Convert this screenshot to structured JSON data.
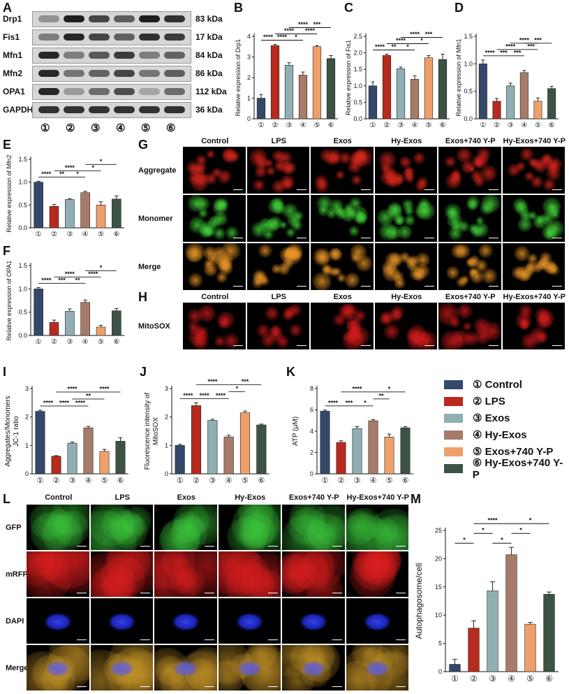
{
  "panels": {
    "A": "A",
    "B": "B",
    "C": "C",
    "D": "D",
    "E": "E",
    "F": "F",
    "G": "G",
    "H": "H",
    "I": "I",
    "J": "J",
    "K": "K",
    "L": "L",
    "M": "M"
  },
  "groups": [
    "①",
    "②",
    "③",
    "④",
    "⑤",
    "⑥"
  ],
  "colors": [
    "#34486a",
    "#b82a1e",
    "#8fafb3",
    "#a67b69",
    "#eea06a",
    "#3c5244"
  ],
  "legend": [
    "① Control",
    "② LPS",
    "③ Exos",
    "④ Hy-Exos",
    "⑤ Exos+740 Y-P",
    "⑥ Hy-Exos+740 Y-P"
  ],
  "western_blot": {
    "proteins": [
      {
        "name": "Drp1",
        "kda": "83 kDa"
      },
      {
        "name": "Fis1",
        "kda": "17 kDa"
      },
      {
        "name": "Mfn1",
        "kda": "84 kDa"
      },
      {
        "name": "Mfn2",
        "kda": "86 kDa"
      },
      {
        "name": "OPA1",
        "kda": "112 kDa"
      },
      {
        "name": "GAPDH",
        "kda": "36 kDa"
      }
    ],
    "intensity": [
      [
        0.35,
        0.95,
        0.75,
        0.62,
        0.95,
        0.85
      ],
      [
        0.45,
        0.9,
        0.75,
        0.6,
        0.85,
        0.8
      ],
      [
        0.9,
        0.45,
        0.65,
        0.8,
        0.45,
        0.6
      ],
      [
        0.9,
        0.5,
        0.6,
        0.75,
        0.5,
        0.62
      ],
      [
        0.9,
        0.3,
        0.55,
        0.7,
        0.25,
        0.55
      ],
      [
        0.85,
        0.85,
        0.85,
        0.85,
        0.85,
        0.85
      ]
    ]
  },
  "conditions": [
    "Control",
    "LPS",
    "Exos",
    "Hy-Exos",
    "Exos+740 Y-P",
    "Hy-Exos+740 Y-P"
  ],
  "row_labels_G": [
    "Aggregate",
    "Monomer",
    "Merge"
  ],
  "row_labels_H": [
    "MitoSOX"
  ],
  "row_labels_L": [
    "GFP",
    "mRFP",
    "DAPI",
    "Merge"
  ],
  "chart_data": [
    {
      "id": "B",
      "type": "bar",
      "categories": [
        "①",
        "②",
        "③",
        "④",
        "⑤",
        "⑥"
      ],
      "values": [
        1.0,
        3.55,
        2.6,
        2.12,
        3.5,
        2.92
      ],
      "errors": [
        0.18,
        0.06,
        0.12,
        0.15,
        0.05,
        0.15
      ],
      "ylabel": "Relative expression of Drp1",
      "ylim": [
        0,
        4
      ],
      "yticks": [
        0,
        1,
        2,
        3,
        4
      ],
      "sig": [
        {
          "from": 0,
          "to": 1,
          "label": "****",
          "level": 0
        },
        {
          "from": 1,
          "to": 2,
          "label": "****",
          "level": 0
        },
        {
          "from": 2,
          "to": 3,
          "label": "*",
          "level": 0
        },
        {
          "from": 1,
          "to": 3,
          "label": "****",
          "level": 1
        },
        {
          "from": 3,
          "to": 4,
          "label": "****",
          "level": 1
        },
        {
          "from": 2,
          "to": 4,
          "label": "****",
          "level": 2
        },
        {
          "from": 3,
          "to": 5,
          "label": "***",
          "level": 2
        }
      ]
    },
    {
      "id": "C",
      "type": "bar",
      "categories": [
        "①",
        "②",
        "③",
        "④",
        "⑤",
        "⑥"
      ],
      "values": [
        1.0,
        1.92,
        1.52,
        1.2,
        1.85,
        1.8
      ],
      "errors": [
        0.12,
        0.04,
        0.05,
        0.1,
        0.07,
        0.16
      ],
      "ylabel": "Relative expression of Fis1",
      "ylim": [
        0,
        2.5
      ],
      "yticks": [
        0,
        0.5,
        1.0,
        1.5,
        2.0,
        2.5
      ],
      "sig": [
        {
          "from": 0,
          "to": 1,
          "label": "****",
          "level": 0
        },
        {
          "from": 1,
          "to": 2,
          "label": "**",
          "level": 0
        },
        {
          "from": 2,
          "to": 3,
          "label": "*",
          "level": 0
        },
        {
          "from": 1,
          "to": 3,
          "label": "****",
          "level": 1
        },
        {
          "from": 3,
          "to": 4,
          "label": "*",
          "level": 1
        },
        {
          "from": 2,
          "to": 4,
          "label": "****",
          "level": 2
        },
        {
          "from": 3,
          "to": 5,
          "label": "***",
          "level": 2
        }
      ]
    },
    {
      "id": "D",
      "type": "bar",
      "categories": [
        "①",
        "②",
        "③",
        "④",
        "⑤",
        "⑥"
      ],
      "values": [
        1.0,
        0.32,
        0.6,
        0.84,
        0.32,
        0.55
      ],
      "errors": [
        0.07,
        0.05,
        0.05,
        0.04,
        0.06,
        0.04
      ],
      "ylabel": "Relative expression of Mfn1",
      "ylim": [
        0,
        1.5
      ],
      "yticks": [
        0,
        0.5,
        1.0,
        1.5
      ],
      "sig": [
        {
          "from": 0,
          "to": 1,
          "label": "****",
          "level": 0
        },
        {
          "from": 1,
          "to": 2,
          "label": "***",
          "level": 0
        },
        {
          "from": 2,
          "to": 3,
          "label": "***",
          "level": 0
        },
        {
          "from": 1,
          "to": 3,
          "label": "****",
          "level": 1
        },
        {
          "from": 3,
          "to": 4,
          "label": "***",
          "level": 1
        },
        {
          "from": 2,
          "to": 4,
          "label": "****",
          "level": 2
        },
        {
          "from": 3,
          "to": 5,
          "label": "***",
          "level": 2
        }
      ]
    },
    {
      "id": "E",
      "type": "bar",
      "categories": [
        "①",
        "②",
        "③",
        "④",
        "⑤",
        "⑥"
      ],
      "values": [
        1.0,
        0.47,
        0.62,
        0.77,
        0.5,
        0.63
      ],
      "errors": [
        0.02,
        0.04,
        0.02,
        0.03,
        0.07,
        0.07
      ],
      "ylabel": "Relative expression of Mfn2",
      "ylim": [
        0,
        1.5
      ],
      "yticks": [
        0,
        0.5,
        1.0,
        1.5
      ],
      "sig": [
        {
          "from": 0,
          "to": 1,
          "label": "****",
          "level": 0
        },
        {
          "from": 1,
          "to": 2,
          "label": "**",
          "level": 0
        },
        {
          "from": 2,
          "to": 3,
          "label": "*",
          "level": 0
        },
        {
          "from": 1,
          "to": 3,
          "label": "****",
          "level": 1
        },
        {
          "from": 3,
          "to": 4,
          "label": "*",
          "level": 1
        },
        {
          "from": 3,
          "to": 5,
          "label": "*",
          "level": 2
        }
      ]
    },
    {
      "id": "F",
      "type": "bar",
      "categories": [
        "①",
        "②",
        "③",
        "④",
        "⑤",
        "⑥"
      ],
      "values": [
        1.0,
        0.28,
        0.52,
        0.71,
        0.18,
        0.53
      ],
      "errors": [
        0.03,
        0.05,
        0.05,
        0.05,
        0.04,
        0.05
      ],
      "ylabel": "Relative expression of OPA1",
      "ylim": [
        0,
        1.5
      ],
      "yticks": [
        0,
        0.5,
        1.0,
        1.5
      ],
      "sig": [
        {
          "from": 0,
          "to": 1,
          "label": "****",
          "level": 0
        },
        {
          "from": 1,
          "to": 2,
          "label": "***",
          "level": 0
        },
        {
          "from": 2,
          "to": 3,
          "label": "**",
          "level": 0
        },
        {
          "from": 1,
          "to": 3,
          "label": "****",
          "level": 1
        },
        {
          "from": 3,
          "to": 4,
          "label": "****",
          "level": 1
        },
        {
          "from": 3,
          "to": 5,
          "label": "*",
          "level": 2
        }
      ]
    },
    {
      "id": "I",
      "type": "bar",
      "categories": [
        "①",
        "②",
        "③",
        "④",
        "⑤",
        "⑥"
      ],
      "values": [
        2.2,
        0.62,
        1.08,
        1.62,
        0.79,
        1.15
      ],
      "errors": [
        0.04,
        0.02,
        0.04,
        0.05,
        0.07,
        0.12
      ],
      "ylabel": [
        "Aggregates/Monomers",
        "JC-1 ratio"
      ],
      "ylim": [
        0,
        3
      ],
      "yticks": [
        0,
        1,
        2,
        3
      ],
      "sig": [
        {
          "from": 0,
          "to": 1,
          "label": "****",
          "level": 0
        },
        {
          "from": 1,
          "to": 2,
          "label": "****",
          "level": 0
        },
        {
          "from": 2,
          "to": 3,
          "label": "****",
          "level": 0
        },
        {
          "from": 2,
          "to": 4,
          "label": "**",
          "level": 1
        },
        {
          "from": 1,
          "to": 3,
          "label": "****",
          "level": 2
        },
        {
          "from": 3,
          "to": 5,
          "label": "****",
          "level": 2
        }
      ]
    },
    {
      "id": "J",
      "type": "bar",
      "categories": [
        "①",
        "②",
        "③",
        "④",
        "⑤",
        "⑥"
      ],
      "values": [
        1.0,
        2.4,
        1.88,
        1.3,
        2.15,
        1.72
      ],
      "errors": [
        0.04,
        0.1,
        0.04,
        0.06,
        0.06,
        0.03
      ],
      "ylabel": [
        "Fluorescence intensity of",
        "MitoSOX"
      ],
      "ylim": [
        0,
        3
      ],
      "yticks": [
        0,
        1,
        2,
        3
      ],
      "sig": [
        {
          "from": 0,
          "to": 1,
          "label": "****",
          "level": 0
        },
        {
          "from": 1,
          "to": 2,
          "label": "****",
          "level": 0
        },
        {
          "from": 2,
          "to": 3,
          "label": "****",
          "level": 0
        },
        {
          "from": 3,
          "to": 4,
          "label": "*",
          "level": 1
        },
        {
          "from": 1,
          "to": 3,
          "label": "****",
          "level": 2
        },
        {
          "from": 3,
          "to": 5,
          "label": "***",
          "level": 2
        }
      ]
    },
    {
      "id": "K",
      "type": "bar",
      "categories": [
        "①",
        "②",
        "③",
        "④",
        "⑤",
        "⑥"
      ],
      "values": [
        5.88,
        2.95,
        4.25,
        4.98,
        3.45,
        4.32
      ],
      "errors": [
        0.1,
        0.15,
        0.18,
        0.12,
        0.28,
        0.12
      ],
      "ylabel": "ATP (μM)",
      "ylim": [
        0,
        8
      ],
      "yticks": [
        0,
        2,
        4,
        6,
        8
      ],
      "sig": [
        {
          "from": 0,
          "to": 1,
          "label": "****",
          "level": 0
        },
        {
          "from": 1,
          "to": 2,
          "label": "***",
          "level": 0
        },
        {
          "from": 2,
          "to": 3,
          "label": "*",
          "level": 0
        },
        {
          "from": 3,
          "to": 4,
          "label": "**",
          "level": 1
        },
        {
          "from": 1,
          "to": 3,
          "label": "****",
          "level": 2
        },
        {
          "from": 3,
          "to": 5,
          "label": "*",
          "level": 2
        }
      ]
    },
    {
      "id": "M",
      "type": "bar",
      "categories": [
        "①",
        "②",
        "③",
        "④",
        "⑤",
        "⑥"
      ],
      "values": [
        1.3,
        7.7,
        14.3,
        20.7,
        8.4,
        13.7
      ],
      "errors": [
        0.9,
        1.3,
        1.6,
        1.3,
        0.3,
        0.4
      ],
      "ylabel": "Autophagosome/cell",
      "ylim": [
        0,
        25
      ],
      "yticks": [
        0,
        5,
        10,
        15,
        20,
        25
      ],
      "sig": [
        {
          "from": 0,
          "to": 1,
          "label": "*",
          "level": 0
        },
        {
          "from": 1,
          "to": 2,
          "label": "*",
          "level": 1
        },
        {
          "from": 2,
          "to": 3,
          "label": "*",
          "level": 0
        },
        {
          "from": 3,
          "to": 4,
          "label": "*",
          "level": 1
        },
        {
          "from": 1,
          "to": 3,
          "label": "****",
          "level": 2
        },
        {
          "from": 3,
          "to": 5,
          "label": "*",
          "level": 2
        }
      ]
    }
  ]
}
